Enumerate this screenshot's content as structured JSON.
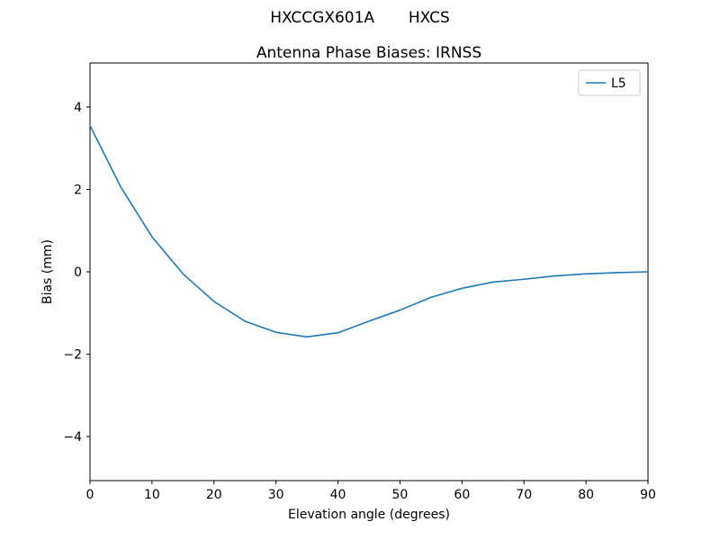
{
  "figure": {
    "suptitle": "HXCCGX601A       HXCS",
    "title": "Antenna Phase Biases: IRNSS"
  },
  "chart_data": {
    "type": "line",
    "title": "Antenna Phase Biases: IRNSS",
    "suptitle": "HXCCGX601A       HXCS",
    "xlabel": "Elevation angle (degrees)",
    "ylabel": "Bias (mm)",
    "xlim": [
      0,
      90
    ],
    "ylim": [
      -5.07,
      5.07
    ],
    "xticks": [
      0,
      10,
      20,
      30,
      40,
      50,
      60,
      70,
      80,
      90
    ],
    "yticks": [
      -4,
      -2,
      0,
      2,
      4
    ],
    "grid": false,
    "legend_position": "upper right",
    "series": [
      {
        "name": "L5",
        "color": "#1f77b4",
        "x": [
          0,
          5,
          10,
          15,
          20,
          25,
          30,
          35,
          40,
          45,
          50,
          55,
          60,
          65,
          70,
          75,
          80,
          85,
          90
        ],
        "y": [
          3.55,
          2.05,
          0.85,
          -0.05,
          -0.72,
          -1.2,
          -1.47,
          -1.58,
          -1.48,
          -1.2,
          -0.93,
          -0.62,
          -0.4,
          -0.25,
          -0.18,
          -0.1,
          -0.05,
          -0.02,
          0.0
        ]
      }
    ]
  }
}
